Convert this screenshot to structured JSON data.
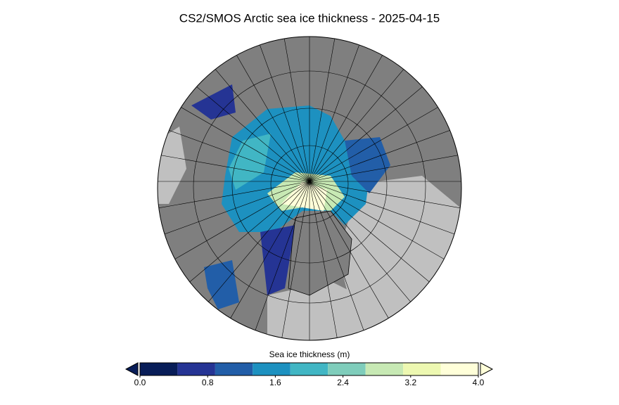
{
  "chart_data": {
    "type": "colorbar-map",
    "title": "CS2/SMOS Arctic sea ice thickness - 2025-04-15",
    "colorbar_label": "Sea ice thickness (m)",
    "xlim": [
      0,
      4
    ],
    "xticks": [
      {
        "value": 0,
        "label": "0.0"
      },
      0.8,
      1.6,
      2.4,
      3.2,
      {
        "value": 4,
        "label": "4.0"
      }
    ],
    "bins": [
      0,
      0.444,
      0.889,
      1.333,
      1.778,
      2.222,
      2.667,
      3.111,
      3.556,
      4
    ],
    "colors": [
      "#081d58",
      "#253494",
      "#225ea8",
      "#1d91c0",
      "#41b6c4",
      "#7fcdbb",
      "#c7e9b4",
      "#edf8b1",
      "#ffffd9"
    ]
  }
}
